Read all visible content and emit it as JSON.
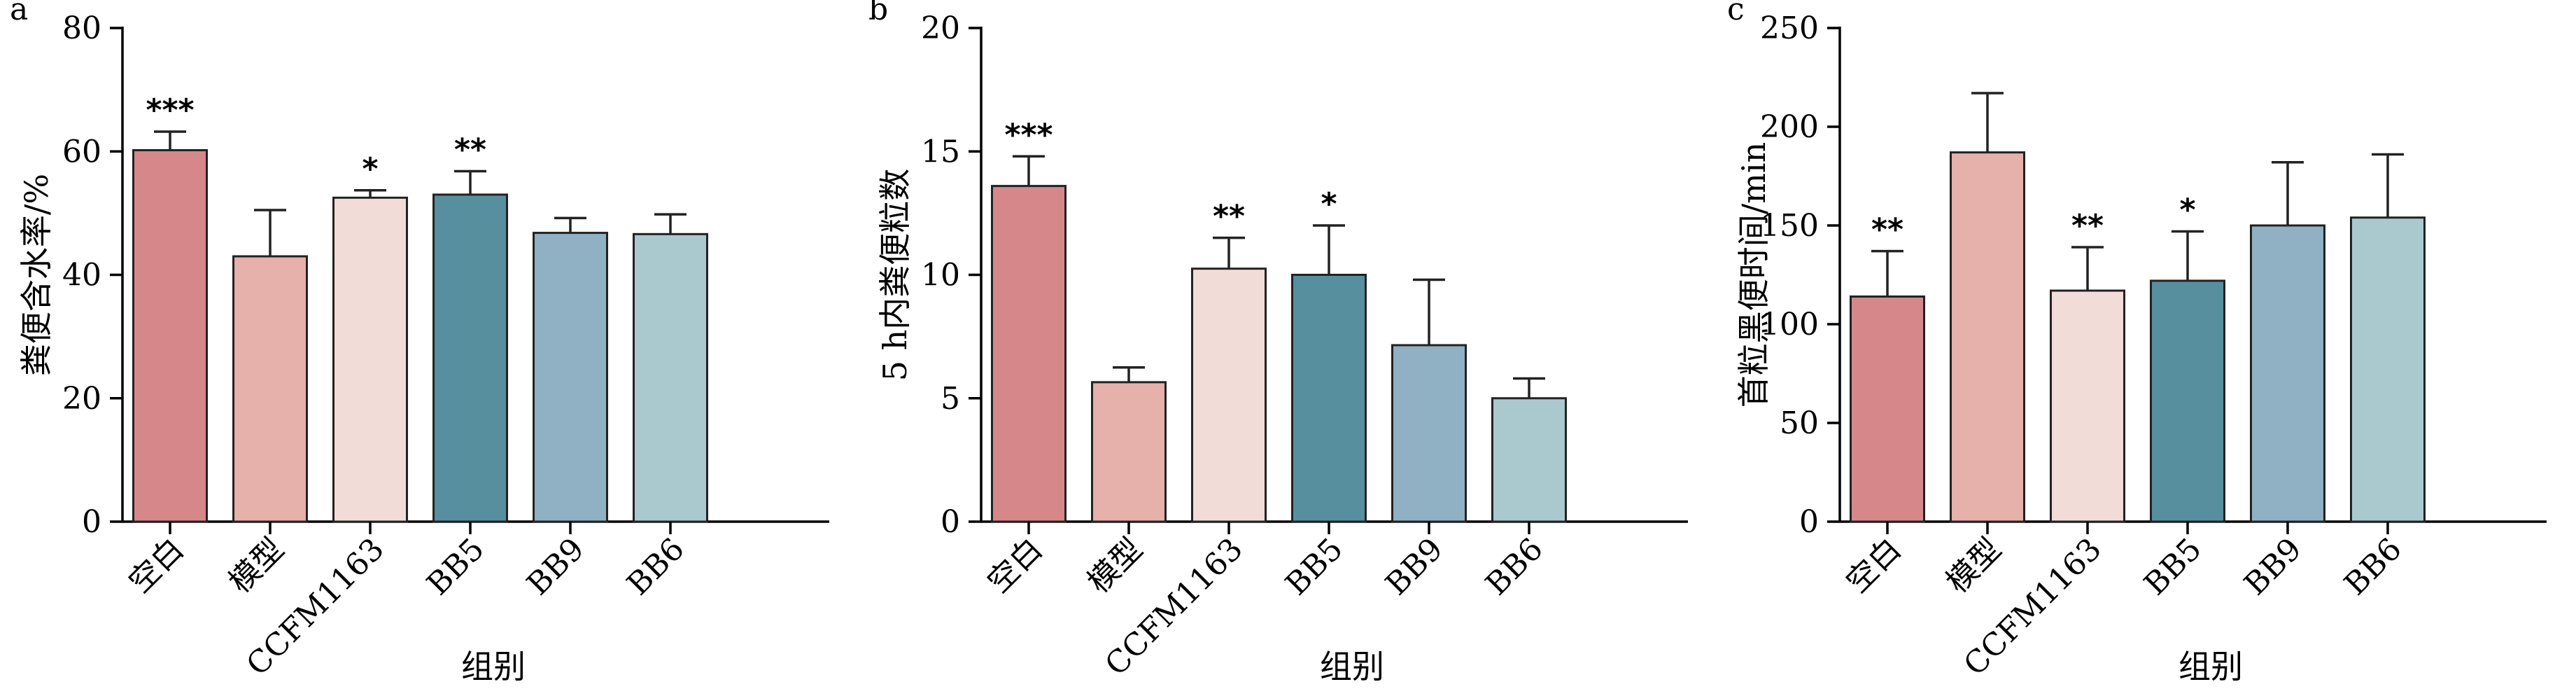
{
  "chart_data": [
    {
      "type": "bar",
      "panel_letter": "a",
      "categories": [
        "空白",
        "模型",
        "CCFM1163",
        "BB5",
        "BB9",
        "BB6"
      ],
      "values": [
        60.2,
        43.0,
        52.5,
        53.0,
        46.8,
        46.6
      ],
      "errors": [
        3.0,
        7.5,
        1.2,
        3.8,
        2.4,
        3.2
      ],
      "significance": [
        "***",
        "",
        "*",
        "**",
        "",
        ""
      ],
      "colors": [
        "#d6878a",
        "#e5b1aa",
        "#f1dcd8",
        "#578f9f",
        "#8fb1c3",
        "#a9c9cf"
      ],
      "xlabel": "组别",
      "ylabel": "粪便含水率/%",
      "ylim": [
        0,
        80
      ],
      "yticks": [
        0,
        20,
        40,
        60,
        80
      ],
      "grid": false
    },
    {
      "type": "bar",
      "panel_letter": "b",
      "categories": [
        "空白",
        "模型",
        "CCFM1163",
        "BB5",
        "BB9",
        "BB6"
      ],
      "values": [
        13.6,
        5.65,
        10.25,
        10.0,
        7.15,
        5.0
      ],
      "errors": [
        1.2,
        0.6,
        1.25,
        2.0,
        2.65,
        0.8
      ],
      "significance": [
        "***",
        "",
        "**",
        "*",
        "",
        ""
      ],
      "colors": [
        "#d6878a",
        "#e5b1aa",
        "#f1dcd8",
        "#578f9f",
        "#8fb1c3",
        "#a9c9cf"
      ],
      "xlabel": "组别",
      "ylabel": "5 h内粪便粒数",
      "ylim": [
        0,
        20
      ],
      "yticks": [
        0,
        5,
        10,
        15,
        20
      ],
      "grid": false
    },
    {
      "type": "bar",
      "panel_letter": "c",
      "categories": [
        "空白",
        "模型",
        "CCFM1163",
        "BB5",
        "BB9",
        "BB6"
      ],
      "values": [
        114,
        187,
        117,
        122,
        150,
        154
      ],
      "errors": [
        23,
        30,
        22,
        25,
        32,
        32
      ],
      "significance": [
        "**",
        "",
        "**",
        "*",
        "",
        ""
      ],
      "colors": [
        "#d6878a",
        "#e5b1aa",
        "#f1dcd8",
        "#578f9f",
        "#8fb1c3",
        "#a9c9cf"
      ],
      "xlabel": "组别",
      "ylabel": "首粒黑便时间/min",
      "ylim": [
        0,
        250
      ],
      "yticks": [
        0,
        50,
        100,
        150,
        200,
        250
      ],
      "grid": false
    }
  ]
}
